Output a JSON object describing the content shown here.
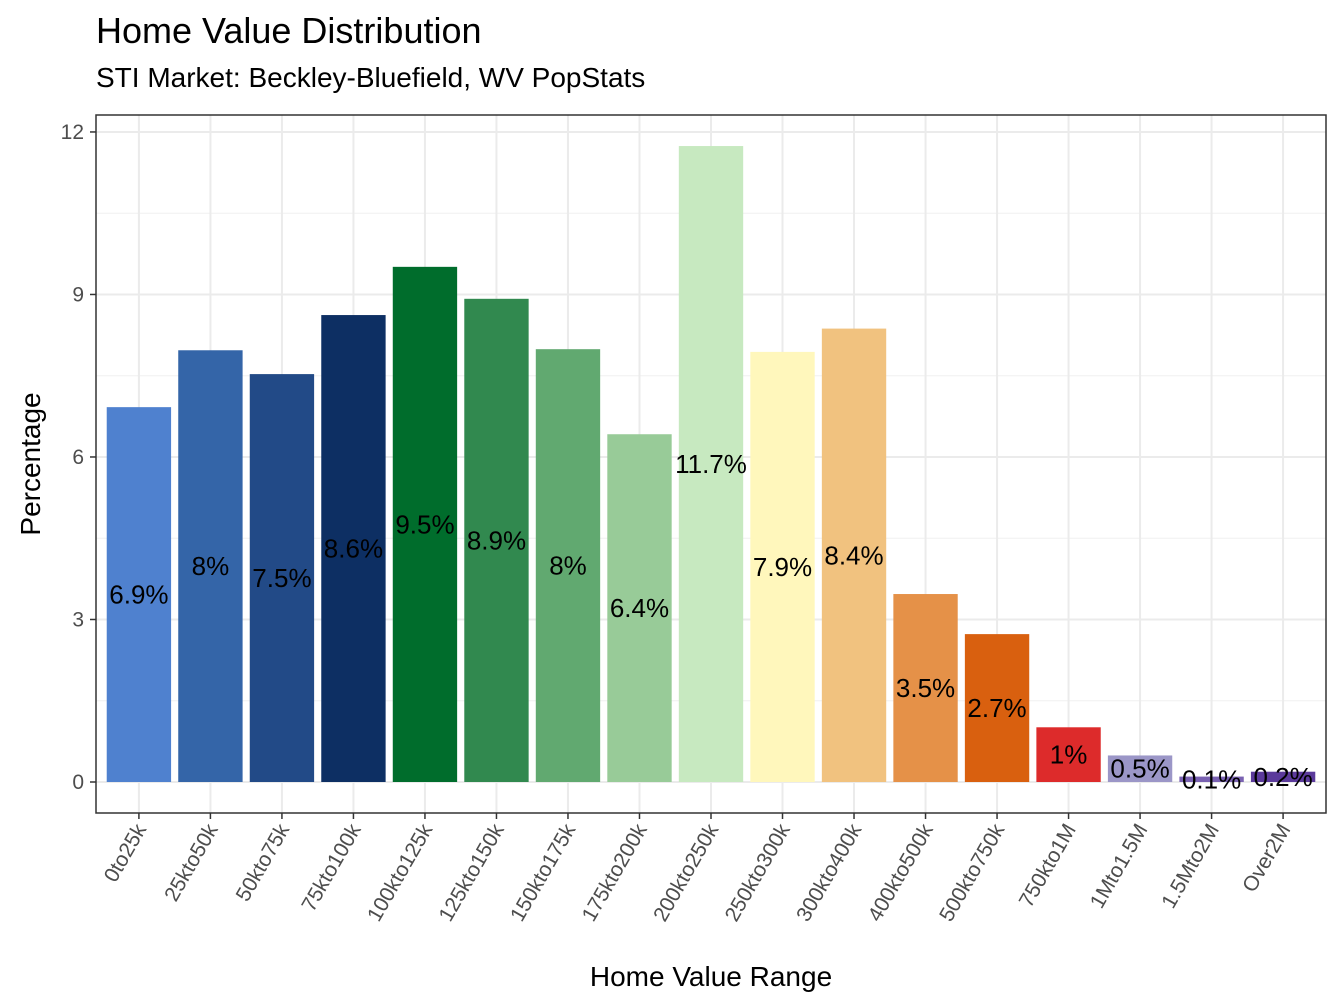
{
  "chart_data": {
    "type": "bar",
    "title": "Home Value Distribution",
    "subtitle": "STI Market: Beckley-Bluefield, WV PopStats",
    "xlabel": "Home Value Range",
    "ylabel": "Percentage",
    "ylim": [
      0,
      12
    ],
    "yticks": [
      0,
      3,
      6,
      9,
      12
    ],
    "grid": true,
    "legend": "none",
    "categories": [
      "0to25k",
      "25kto50k",
      "50kto75k",
      "75kto100k",
      "100kto125k",
      "125kto150k",
      "150kto175k",
      "175kto200k",
      "200kto250k",
      "250kto300k",
      "300kto400k",
      "400kto500k",
      "500kto750k",
      "750kto1M",
      "1Mto1.5M",
      "1.5Mto2M",
      "Over2M"
    ],
    "values": [
      6.92,
      7.97,
      7.53,
      8.62,
      9.51,
      8.92,
      7.99,
      6.42,
      11.74,
      7.94,
      8.37,
      3.47,
      2.73,
      1.01,
      0.49,
      0.1,
      0.19
    ],
    "labels": [
      "6.9%",
      "8%",
      "7.5%",
      "8.6%",
      "9.5%",
      "8.9%",
      "8%",
      "6.4%",
      "11.7%",
      "7.9%",
      "8.4%",
      "3.5%",
      "2.7%",
      "1%",
      "0.5%",
      "0.1%",
      "0.2%"
    ],
    "colors": [
      "#4F81CF",
      "#3465A8",
      "#224A87",
      "#0D2F63",
      "#006D2C",
      "#31894F",
      "#61A970",
      "#98CB98",
      "#C7E9C0",
      "#FFF7BC",
      "#F1C27F",
      "#E59148",
      "#D9600F",
      "#DD2B2B",
      "#9B96C7",
      "#7A62B2",
      "#5B3A9B"
    ]
  }
}
